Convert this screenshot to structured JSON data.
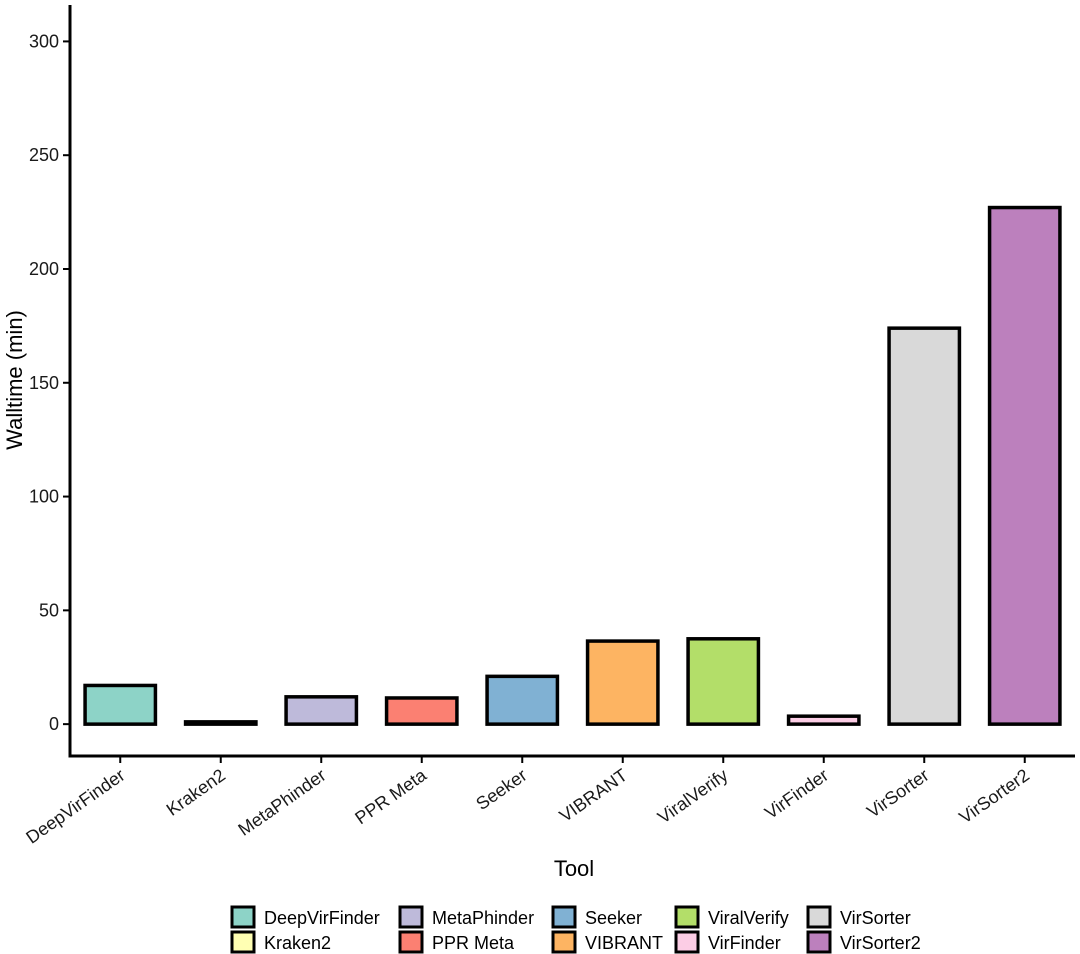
{
  "chart_data": {
    "type": "bar",
    "title": "",
    "xlabel": "Tool",
    "ylabel": "Walltime (min)",
    "ylim": [
      -14,
      316
    ],
    "yticks": [
      0,
      50,
      100,
      150,
      200,
      250,
      300
    ],
    "grid": false,
    "legend_position": "bottom",
    "categories": [
      "DeepVirFinder",
      "Kraken2",
      "MetaPhinder",
      "PPR Meta",
      "Seeker",
      "VIBRANT",
      "ViralVerify",
      "VirFinder",
      "VirSorter",
      "VirSorter2"
    ],
    "values": [
      17,
      1,
      12,
      11.5,
      21,
      36.5,
      37.5,
      3.5,
      174,
      227
    ],
    "colors": [
      "#8DD3C7",
      "#FFFFB3",
      "#BEBADA",
      "#FB8072",
      "#80B1D3",
      "#FDB462",
      "#B3DE69",
      "#FCCDE5",
      "#D9D9D9",
      "#BC80BD"
    ]
  }
}
